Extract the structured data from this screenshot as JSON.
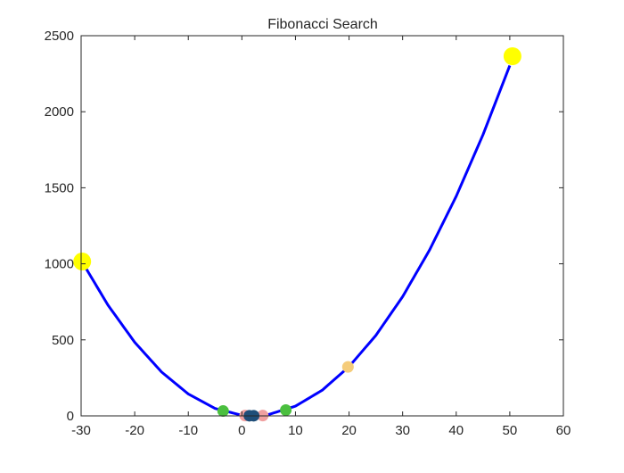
{
  "chart_data": {
    "type": "line",
    "title": "Fibonacci Search",
    "xlabel": "",
    "ylabel": "",
    "xlim": [
      -30,
      60
    ],
    "ylim": [
      0,
      2500
    ],
    "xticks": [
      -30,
      -20,
      -10,
      0,
      10,
      20,
      30,
      40,
      50,
      60
    ],
    "yticks": [
      0,
      500,
      1000,
      1500,
      2000,
      2500
    ],
    "grid": false,
    "curve": {
      "color": "#0000ff",
      "x_range": [
        -30,
        50
      ],
      "x": [
        -30,
        -25,
        -20,
        -15,
        -10,
        -5,
        0,
        2,
        5,
        10,
        15,
        20,
        25,
        30,
        35,
        40,
        45,
        50
      ],
      "y": [
        1024,
        729,
        484,
        289,
        144,
        49,
        4,
        0,
        9,
        64,
        169,
        324,
        529,
        784,
        1089,
        1444,
        1849,
        2304
      ]
    },
    "markers": [
      {
        "x": -29.8,
        "y": 1015,
        "color": "#ffff00",
        "size": "large"
      },
      {
        "x": 50.5,
        "y": 2365,
        "color": "#ffff00",
        "size": "large"
      },
      {
        "x": 19.8,
        "y": 322,
        "color": "#f5cc7a",
        "size": "medium"
      },
      {
        "x": -3.5,
        "y": 32,
        "color": "#4bbf3f",
        "size": "medium"
      },
      {
        "x": 8.2,
        "y": 38,
        "color": "#4bbf3f",
        "size": "medium"
      },
      {
        "x": 0.6,
        "y": 2,
        "color": "#f0a0a0",
        "size": "medium"
      },
      {
        "x": 3.9,
        "y": 2,
        "color": "#f0a0a0",
        "size": "medium"
      },
      {
        "x": 1.4,
        "y": 1,
        "color": "#1f4e79",
        "size": "medium"
      },
      {
        "x": 2.2,
        "y": 1,
        "color": "#1f4e79",
        "size": "medium"
      }
    ]
  }
}
